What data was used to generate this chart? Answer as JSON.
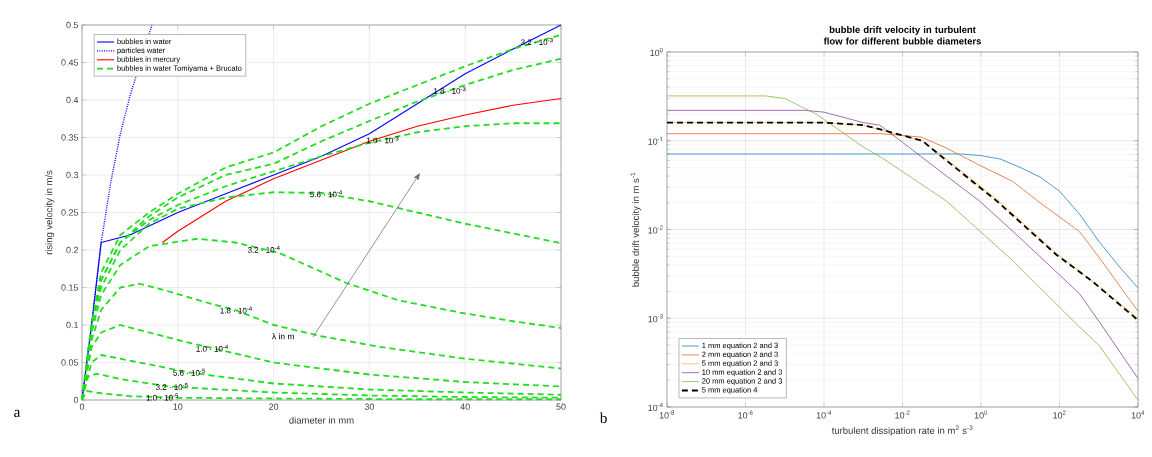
{
  "chart_data": [
    {
      "type": "line",
      "xlabel": "diameter in mm",
      "ylabel": "rising velocity in m/s",
      "xlim": [
        0,
        50
      ],
      "ylim": [
        0,
        0.5
      ],
      "xticks": [
        0,
        10,
        20,
        30,
        40,
        50
      ],
      "yticks": [
        0,
        0.05,
        0.1,
        0.15,
        0.2,
        0.25,
        0.3,
        0.35,
        0.4,
        0.45,
        0.5
      ],
      "grid": true,
      "legend": "top left",
      "series": [
        {
          "name": "bubbles in water",
          "color": "#0000ff",
          "line_style": "solid",
          "x": [
            0,
            0.3,
            1,
            2,
            5,
            10,
            15,
            20,
            25,
            30,
            35,
            40,
            45,
            50
          ],
          "values": [
            0,
            0.03,
            0.1,
            0.21,
            0.22,
            0.25,
            0.275,
            0.3,
            0.325,
            0.355,
            0.395,
            0.435,
            0.468,
            0.5
          ]
        },
        {
          "name": "particles water",
          "color": "#0000ff",
          "line_style": "dotted",
          "x": [
            0,
            1,
            2,
            3,
            4,
            5,
            6,
            7.3
          ],
          "values": [
            0,
            0.1,
            0.21,
            0.29,
            0.355,
            0.405,
            null,
            0.5
          ]
        },
        {
          "name": "bubbles in mercury",
          "color": "#ff0000",
          "line_style": "solid",
          "x": [
            8.4,
            10,
            15,
            20,
            25,
            30,
            35,
            40,
            45,
            50
          ],
          "values": [
            0.21,
            0.225,
            0.265,
            0.295,
            0.32,
            0.345,
            0.365,
            0.38,
            0.393,
            0.402
          ]
        },
        {
          "name": "bubbles in water Tomiyama + Brucato",
          "color": "#22dd22",
          "line_style": "dashed",
          "x": [
            0,
            1,
            2,
            4,
            7,
            10,
            15,
            20,
            25,
            30,
            35,
            40,
            45,
            50
          ],
          "values": [
            0,
            0.1,
            0.17,
            0.22,
            0.25,
            0.275,
            0.31,
            0.33,
            0.365,
            0.395,
            0.42,
            0.445,
            0.468,
            0.487
          ]
        },
        {
          "color": "#22dd22",
          "line_style": "dashed",
          "x": [
            0,
            1,
            2,
            4,
            7,
            10,
            15,
            20,
            25,
            30,
            35,
            40,
            45,
            50
          ],
          "values": [
            0,
            0.1,
            0.16,
            0.21,
            0.245,
            0.27,
            0.3,
            0.315,
            0.345,
            0.372,
            0.398,
            0.42,
            0.44,
            0.455
          ]
        },
        {
          "color": "#22dd22",
          "line_style": "dashed",
          "x": [
            0,
            1,
            2,
            4,
            7,
            10,
            15,
            20,
            25,
            30,
            35,
            40,
            45,
            50
          ],
          "values": [
            0,
            0.1,
            0.16,
            0.21,
            0.24,
            0.26,
            0.285,
            0.305,
            0.325,
            0.343,
            0.357,
            0.365,
            0.369,
            0.369
          ]
        },
        {
          "color": "#22dd22",
          "line_style": "dashed",
          "x": [
            0,
            1,
            2,
            4,
            7,
            10,
            15,
            20,
            25,
            30,
            35,
            40,
            45,
            50
          ],
          "values": [
            0,
            0.1,
            0.15,
            0.2,
            0.235,
            0.255,
            0.27,
            0.277,
            0.276,
            0.265,
            0.25,
            0.235,
            0.222,
            0.209
          ]
        },
        {
          "color": "#22dd22",
          "line_style": "dashed",
          "x": [
            0,
            1,
            2,
            4,
            7,
            12,
            16,
            20.6,
            27.6,
            33,
            39.7,
            45,
            50
          ],
          "values": [
            0,
            0.09,
            0.14,
            0.18,
            0.205,
            0.215,
            0.21,
            0.196,
            0.156,
            0.133,
            0.116,
            0.105,
            0.096
          ]
        },
        {
          "color": "#22dd22",
          "line_style": "dashed",
          "x": [
            0,
            1,
            2,
            4,
            6,
            9,
            13,
            16,
            20,
            25,
            31,
            40,
            50
          ],
          "values": [
            0,
            0.08,
            0.12,
            0.15,
            0.155,
            0.145,
            0.13,
            0.12,
            0.1,
            0.085,
            0.071,
            0.055,
            0.042
          ]
        },
        {
          "color": "#22dd22",
          "line_style": "dashed",
          "x": [
            0,
            1,
            2,
            4,
            7,
            10,
            14,
            20,
            30,
            40,
            50
          ],
          "values": [
            0,
            0.07,
            0.09,
            0.1,
            0.09,
            0.08,
            0.068,
            0.05,
            0.034,
            0.024,
            0.018
          ]
        },
        {
          "color": "#22dd22",
          "line_style": "dashed",
          "x": [
            0,
            1,
            2,
            4,
            8,
            11,
            20,
            30,
            40,
            50
          ],
          "values": [
            0,
            0.05,
            0.06,
            0.055,
            0.045,
            0.037,
            0.022,
            0.014,
            0.01,
            0.007
          ]
        },
        {
          "color": "#22dd22",
          "line_style": "dashed",
          "x": [
            0,
            0.5,
            1.5,
            4,
            9,
            20,
            30,
            40,
            50
          ],
          "values": [
            0,
            0.03,
            0.035,
            0.028,
            0.018,
            0.01,
            0.006,
            0.004,
            0.003
          ]
        },
        {
          "color": "#22dd22",
          "line_style": "dashed",
          "x": [
            0,
            0.5,
            2,
            5,
            10,
            20,
            35,
            50
          ],
          "values": [
            0,
            0.012,
            0.009,
            0.005,
            0.003,
            0.002,
            0.001,
            0.001
          ]
        }
      ],
      "annotations": [
        {
          "text": "3.2 · 10$^{-3}$",
          "x": 47.5,
          "y": 0.478
        },
        {
          "text": "1.8 · 10$^{-3}$",
          "x": 38.4,
          "y": 0.413
        },
        {
          "text": "1.0 · 10$^{-3}$",
          "x": 31.4,
          "y": 0.347
        },
        {
          "text": "5.6 · 10$^{-4}$",
          "x": 25.5,
          "y": 0.275
        },
        {
          "text": "3.2 · 10$^{-4}$",
          "x": 19,
          "y": 0.201
        },
        {
          "text": "1.8 · 10$^{-4}$",
          "x": 16.1,
          "y": 0.12
        },
        {
          "text": "1.0 · 10$^{-4}$",
          "x": 13.6,
          "y": 0.069
        },
        {
          "text": "5.6 · 10$^{-5}$",
          "x": 11.2,
          "y": 0.037
        },
        {
          "text": "3.2 · 10$^{-5}$",
          "x": 9.4,
          "y": 0.018
        },
        {
          "text": "1.0 · 10$^{-5}$",
          "x": 8.4,
          "y": 0.004
        },
        "λ in m",
        "a"
      ]
    },
    {
      "type": "line",
      "title": "bubble drift velocity in turbulent flow for different bubble diameters",
      "xlabel": "turbulent dissipation rate in m$^{2}$ s$^{-3}$",
      "ylabel": "bubble drift velocity in m s$^{-1}$",
      "log": "xy",
      "xlim": [
        1e-08,
        10000
      ],
      "ylim": [
        0.0001,
        1
      ],
      "xticks": [
        {
          "value": 1e-08,
          "label": "10$^{-8}$"
        },
        {
          "value": 1e-06,
          "label": "10$^{-6}$"
        },
        {
          "value": 0.0001,
          "label": "10$^{-4}$"
        },
        {
          "value": 0.01,
          "label": "10$^{-2}$"
        },
        {
          "value": 1,
          "label": "10$^{0}$"
        },
        {
          "value": 100,
          "label": "10$^{2}$"
        },
        {
          "value": 10000,
          "label": "10$^{4}$"
        }
      ],
      "yticks": [
        {
          "value": 0.0001,
          "label": "10$^{-4}$"
        },
        {
          "value": 0.001,
          "label": "10$^{-3}$"
        },
        {
          "value": 0.01,
          "label": "10$^{-2}$"
        },
        {
          "value": 0.1,
          "label": "10$^{-1}$"
        },
        {
          "value": 1,
          "label": "10$^{0}$"
        }
      ],
      "grid": true,
      "legend": "bottom left",
      "series": [
        {
          "name": "1 mm equation 2 and 3",
          "color": "#0072bd",
          "line_style": "solid",
          "x": [
            1e-08,
            0.3,
            1,
            3.2,
            10,
            32,
            100,
            320,
            1000,
            3200,
            10000
          ],
          "values": [
            0.071,
            0.071,
            0.068,
            0.062,
            0.05,
            0.039,
            0.027,
            0.015,
            0.0074,
            0.0039,
            0.0022
          ]
        },
        {
          "name": "2 mm equation 2 and 3",
          "color": "#d95319",
          "line_style": "solid",
          "x": [
            1e-08,
            0.003,
            0.03,
            0.13,
            1,
            6.3,
            32,
            320,
            1000,
            10000
          ],
          "values": [
            0.12,
            0.12,
            0.11,
            0.083,
            0.052,
            0.035,
            0.02,
            0.0095,
            0.0049,
            0.0012
          ]
        },
        {
          "name": "5 mm equation 2 and 3",
          "color": "#edb120",
          "line_style": "solid",
          "x": [
            1e-08,
            0.0001,
            0.001,
            0.0032,
            0.032,
            0.1,
            2.5,
            79,
            630,
            10000
          ],
          "values": [
            0.16,
            0.16,
            0.15,
            0.13,
            0.1,
            0.068,
            0.022,
            0.0055,
            0.0027,
            0.001
          ]
        },
        {
          "name": "10 mm equation 2 and 3",
          "color": "#7e2f8e",
          "line_style": "solid",
          "x": [
            1e-08,
            3.2e-05,
            0.0001,
            0.001,
            0.0026,
            0.01,
            0.1,
            0.91,
            10,
            320,
            1000,
            10000
          ],
          "values": [
            0.22,
            0.22,
            0.21,
            0.16,
            0.15,
            0.096,
            0.044,
            0.021,
            0.008,
            0.0019,
            0.00093,
            0.00021
          ]
        },
        {
          "name": "20 mm equation 2 and 3",
          "color": "#77ac30",
          "line_style": "solid",
          "x": [
            1e-08,
            3.2e-06,
            1e-05,
            6.3e-05,
            0.001,
            0.0032,
            0.13,
            6.3,
            320,
            1000,
            10000
          ],
          "values": [
            0.32,
            0.32,
            0.3,
            0.2,
            0.085,
            0.063,
            0.021,
            0.0045,
            0.0008,
            0.0005,
            0.00012
          ]
        },
        {
          "name": "5 mm equation 4",
          "color": "#000000",
          "line_style": "dashed",
          "x": [
            1e-08,
            0.0001,
            0.001,
            0.0026,
            0.032,
            0.1,
            2.5,
            83,
            690,
            10000
          ],
          "values": [
            0.16,
            0.16,
            0.15,
            0.135,
            0.1,
            0.066,
            0.021,
            0.0052,
            0.0026,
            0.00095
          ]
        }
      ],
      "annotations": [
        "b"
      ]
    }
  ]
}
